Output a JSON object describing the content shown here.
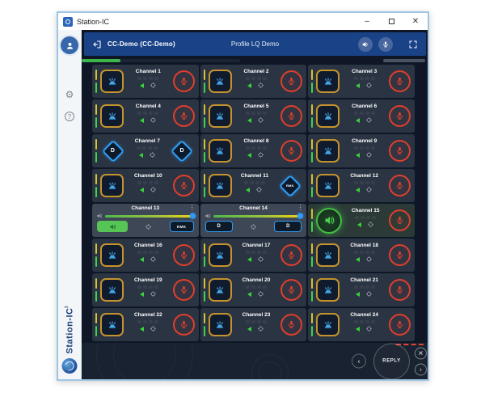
{
  "titlebar": {
    "title": "Station-IC",
    "minimize": "–",
    "close": "✕"
  },
  "topbar": {
    "connection": "CC-Demo  (CC-Demo)",
    "profile": "Profile LQ Demo"
  },
  "sidebar": {
    "help_label": "?",
    "brand": "Station-IC",
    "brand_tm": "™"
  },
  "bottombar": {
    "reply_label": "REPLY",
    "prev_label": "‹",
    "next_label": "›",
    "close_label": "✕"
  },
  "colors": {
    "navbar_blue": "#1a4287",
    "talk_amber": "#c5932e",
    "mic_red": "#df3f2c",
    "listen_green": "#43bf43",
    "dante_blue": "#2f9df5",
    "meter_green": "#3cb54a",
    "meter_yellow": "#d8c22d"
  },
  "channels": [
    {
      "name": "Channel 1",
      "variant": "normal"
    },
    {
      "name": "Channel 2",
      "variant": "normal"
    },
    {
      "name": "Channel 3",
      "variant": "normal"
    },
    {
      "name": "Channel 4",
      "variant": "normal"
    },
    {
      "name": "Channel 5",
      "variant": "normal"
    },
    {
      "name": "Channel 6",
      "variant": "normal"
    },
    {
      "name": "Channel 7",
      "variant": "dante",
      "left_badge": "D",
      "right_badge": "D"
    },
    {
      "name": "Channel 8",
      "variant": "normal"
    },
    {
      "name": "Channel 9",
      "variant": "normal"
    },
    {
      "name": "Channel 10",
      "variant": "normal"
    },
    {
      "name": "Channel 11",
      "variant": "rmk-right",
      "right_badge": "RMK"
    },
    {
      "name": "Channel 12",
      "variant": "normal"
    },
    {
      "name": "Channel 13",
      "variant": "expanded-listen",
      "right_badge": "RMK",
      "menu": "⋮"
    },
    {
      "name": "Channel 14",
      "variant": "expanded-dante",
      "left_badge": "D",
      "right_badge": "D",
      "menu": "⋮"
    },
    {
      "name": "Channel 15",
      "variant": "listening"
    },
    {
      "name": "Channel 16",
      "variant": "normal"
    },
    {
      "name": "Channel 17",
      "variant": "normal"
    },
    {
      "name": "Channel 18",
      "variant": "normal"
    },
    {
      "name": "Channel 19",
      "variant": "normal"
    },
    {
      "name": "Channel 20",
      "variant": "normal"
    },
    {
      "name": "Channel 21",
      "variant": "normal"
    },
    {
      "name": "Channel 22",
      "variant": "normal"
    },
    {
      "name": "Channel 23",
      "variant": "normal"
    },
    {
      "name": "Channel 24",
      "variant": "normal"
    }
  ]
}
